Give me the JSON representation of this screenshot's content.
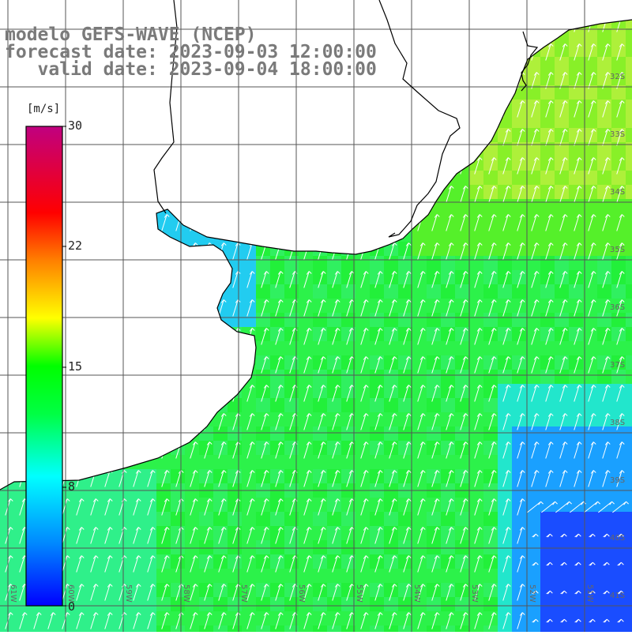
{
  "title": {
    "line1": "modelo GEFS-WAVE (NCEP)",
    "line2": "forecast date: 2023-09-03 12:00:00",
    "line3": "   valid date: 2023-09-04 18:00:00"
  },
  "colorbar": {
    "unit": "[m/s]",
    "ticks": [
      "30",
      "22",
      "15",
      "8",
      "0"
    ],
    "stops": [
      "#0000ff",
      "#0077ff",
      "#00ffff",
      "#00ff00",
      "#ffff00",
      "#ff7f00",
      "#ff0000",
      "#c00080"
    ]
  },
  "map": {
    "lat_labels": [
      "32S",
      "33S",
      "34S",
      "35S",
      "36S",
      "37S",
      "38S",
      "39S",
      "40S",
      "41S"
    ],
    "lon_labels": [
      "61W",
      "60W",
      "59W",
      "58W",
      "57W",
      "56W",
      "55W",
      "54W",
      "53W",
      "52W",
      "51W"
    ],
    "colors": {
      "land": "#ffffff",
      "grid": "#555555",
      "coast": "#000000",
      "arrow": "#ffffff"
    }
  }
}
